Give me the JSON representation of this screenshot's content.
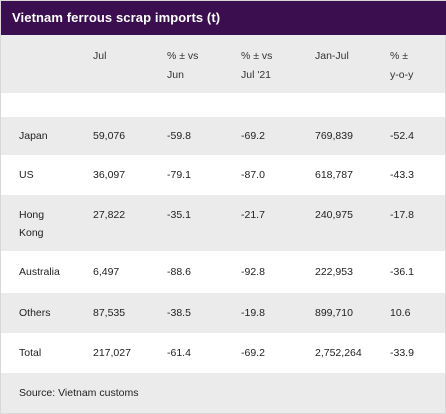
{
  "title": "Vietnam ferrous scrap imports (t)",
  "columns": [
    {
      "line1": "",
      "line2": ""
    },
    {
      "line1": "Jul",
      "line2": ""
    },
    {
      "line1": "% ± vs",
      "line2": "Jun"
    },
    {
      "line1": "% ± vs",
      "line2": "Jul '21"
    },
    {
      "line1": "Jan-Jul",
      "line2": ""
    },
    {
      "line1": "% ±",
      "line2": "y-o-y"
    }
  ],
  "rows": [
    {
      "country_line1": "Japan",
      "country_line2": "",
      "jul": "59,076",
      "vs_jun": "-59.8",
      "vs_jul21": "-69.2",
      "jan_jul": "769,839",
      "yoy": "-52.4"
    },
    {
      "country_line1": "US",
      "country_line2": "",
      "jul": "36,097",
      "vs_jun": "-79.1",
      "vs_jul21": "-87.0",
      "jan_jul": "618,787",
      "yoy": "-43.3"
    },
    {
      "country_line1": "Hong",
      "country_line2": "Kong",
      "jul": "27,822",
      "vs_jun": "-35.1",
      "vs_jul21": "-21.7",
      "jan_jul": "240,975",
      "yoy": "-17.8"
    },
    {
      "country_line1": "Australia",
      "country_line2": "",
      "jul": "6,497",
      "vs_jun": "-88.6",
      "vs_jul21": "-92.8",
      "jan_jul": "222,953",
      "yoy": "-36.1"
    },
    {
      "country_line1": "Others",
      "country_line2": "",
      "jul": "87,535",
      "vs_jun": "-38.5",
      "vs_jul21": "-19.8",
      "jan_jul": "899,710",
      "yoy": "10.6"
    },
    {
      "country_line1": "Total",
      "country_line2": "",
      "jul": "217,027",
      "vs_jun": "-61.4",
      "vs_jul21": "-69.2",
      "jan_jul": "2,752,264",
      "yoy": "-33.9"
    }
  ],
  "source": "Source: Vietnam customs"
}
